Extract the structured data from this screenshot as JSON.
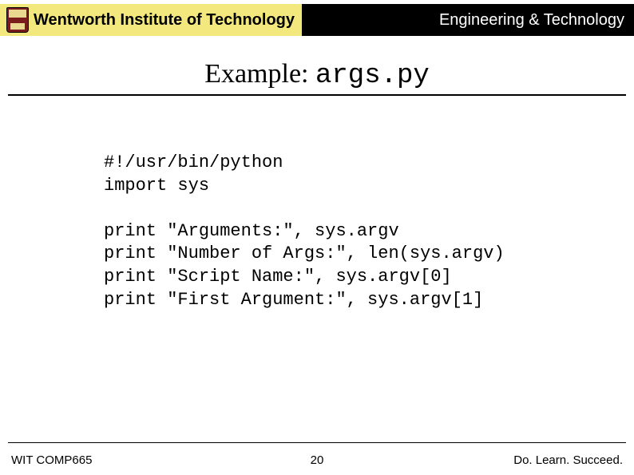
{
  "header": {
    "institution": "Wentworth Institute of Technology",
    "department": "Engineering & Technology"
  },
  "title": {
    "prefix": "Example: ",
    "filename": "args.py"
  },
  "code": {
    "text": "#!/usr/bin/python\nimport sys\n\nprint \"Arguments:\", sys.argv\nprint \"Number of Args:\", len(sys.argv)\nprint \"Script Name:\", sys.argv[0]\nprint \"First Argument:\", sys.argv[1]"
  },
  "footer": {
    "course": "WIT COMP665",
    "page": "20",
    "motto": "Do. Learn. Succeed."
  },
  "colors": {
    "header_left_bg": "#f2e87d",
    "header_right_bg": "#000000",
    "header_right_fg": "#ffffff",
    "text": "#000000",
    "page_bg": "#ffffff"
  },
  "typography": {
    "title_font": "Georgia, serif",
    "title_size_pt": 26,
    "code_font": "Courier New, monospace",
    "code_size_pt": 17,
    "body_font": "Arial, sans-serif",
    "footer_size_pt": 11
  }
}
